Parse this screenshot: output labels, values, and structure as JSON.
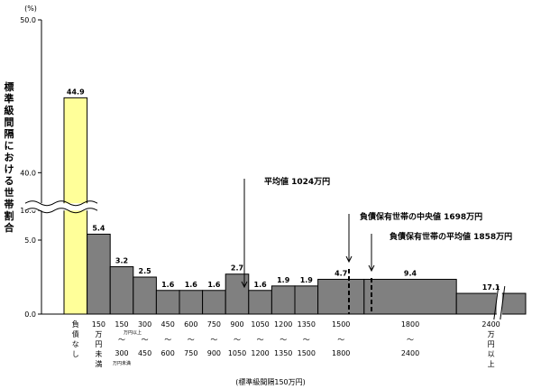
{
  "chart_data": {
    "type": "bar",
    "title": "",
    "unit": "(%)",
    "ylabel": "標準級間隔における世帯割合",
    "xlabel": "(標準級間隔150万円)",
    "ylim": [
      0,
      50
    ],
    "y_ticks": [
      "0.0",
      "5.0",
      "10.0",
      "40.0",
      "50.0"
    ],
    "axis_break": {
      "from": 7,
      "to": 38
    },
    "categories": [
      {
        "lines": [
          "負",
          "債",
          "な",
          "し"
        ],
        "value": 44.9,
        "label": "44.9",
        "highlight": true
      },
      {
        "lines": [
          "150",
          "万",
          "円",
          "未",
          "満"
        ],
        "value": 5.4,
        "label": "5.4"
      },
      {
        "lines": [
          "150",
          "300"
        ],
        "small_top": "万円以上",
        "small_bottom": "万円未満",
        "value": 3.2,
        "label": "3.2"
      },
      {
        "lines": [
          "300",
          "450"
        ],
        "value": 2.5,
        "label": "2.5"
      },
      {
        "lines": [
          "450",
          "600"
        ],
        "value": 1.6,
        "label": "1.6"
      },
      {
        "lines": [
          "600",
          "750"
        ],
        "value": 1.6,
        "label": "1.6"
      },
      {
        "lines": [
          "750",
          "900"
        ],
        "value": 1.6,
        "label": "1.6"
      },
      {
        "lines": [
          "900",
          "1050"
        ],
        "value": 2.7,
        "label": "2.7"
      },
      {
        "lines": [
          "1050",
          "1200"
        ],
        "value": 1.6,
        "label": "1.6"
      },
      {
        "lines": [
          "1200",
          "1350"
        ],
        "value": 1.9,
        "label": "1.9"
      },
      {
        "lines": [
          "1350",
          "1500"
        ],
        "value": 1.9,
        "label": "1.9"
      },
      {
        "lines": [
          "1500",
          "1800"
        ],
        "value": 2.35,
        "label": "4.7",
        "span": 2
      },
      {
        "lines": [
          "1800",
          "2400"
        ],
        "value": 2.35,
        "label": "9.4",
        "span": 4
      },
      {
        "lines": [
          "2400",
          "万",
          "円",
          "以",
          "上"
        ],
        "value": 1.4,
        "label": "17.1",
        "span": 3
      }
    ],
    "range_marker": "〜",
    "annotations": [
      {
        "text": "平均値 1024万円"
      },
      {
        "text": "負債保有世帯の中央値 1698万円"
      },
      {
        "text": "負債保有世帯の平均値 1858万円"
      }
    ],
    "colors": {
      "highlight": "#ffff99",
      "bar": "#808080",
      "border": "#000000"
    }
  }
}
